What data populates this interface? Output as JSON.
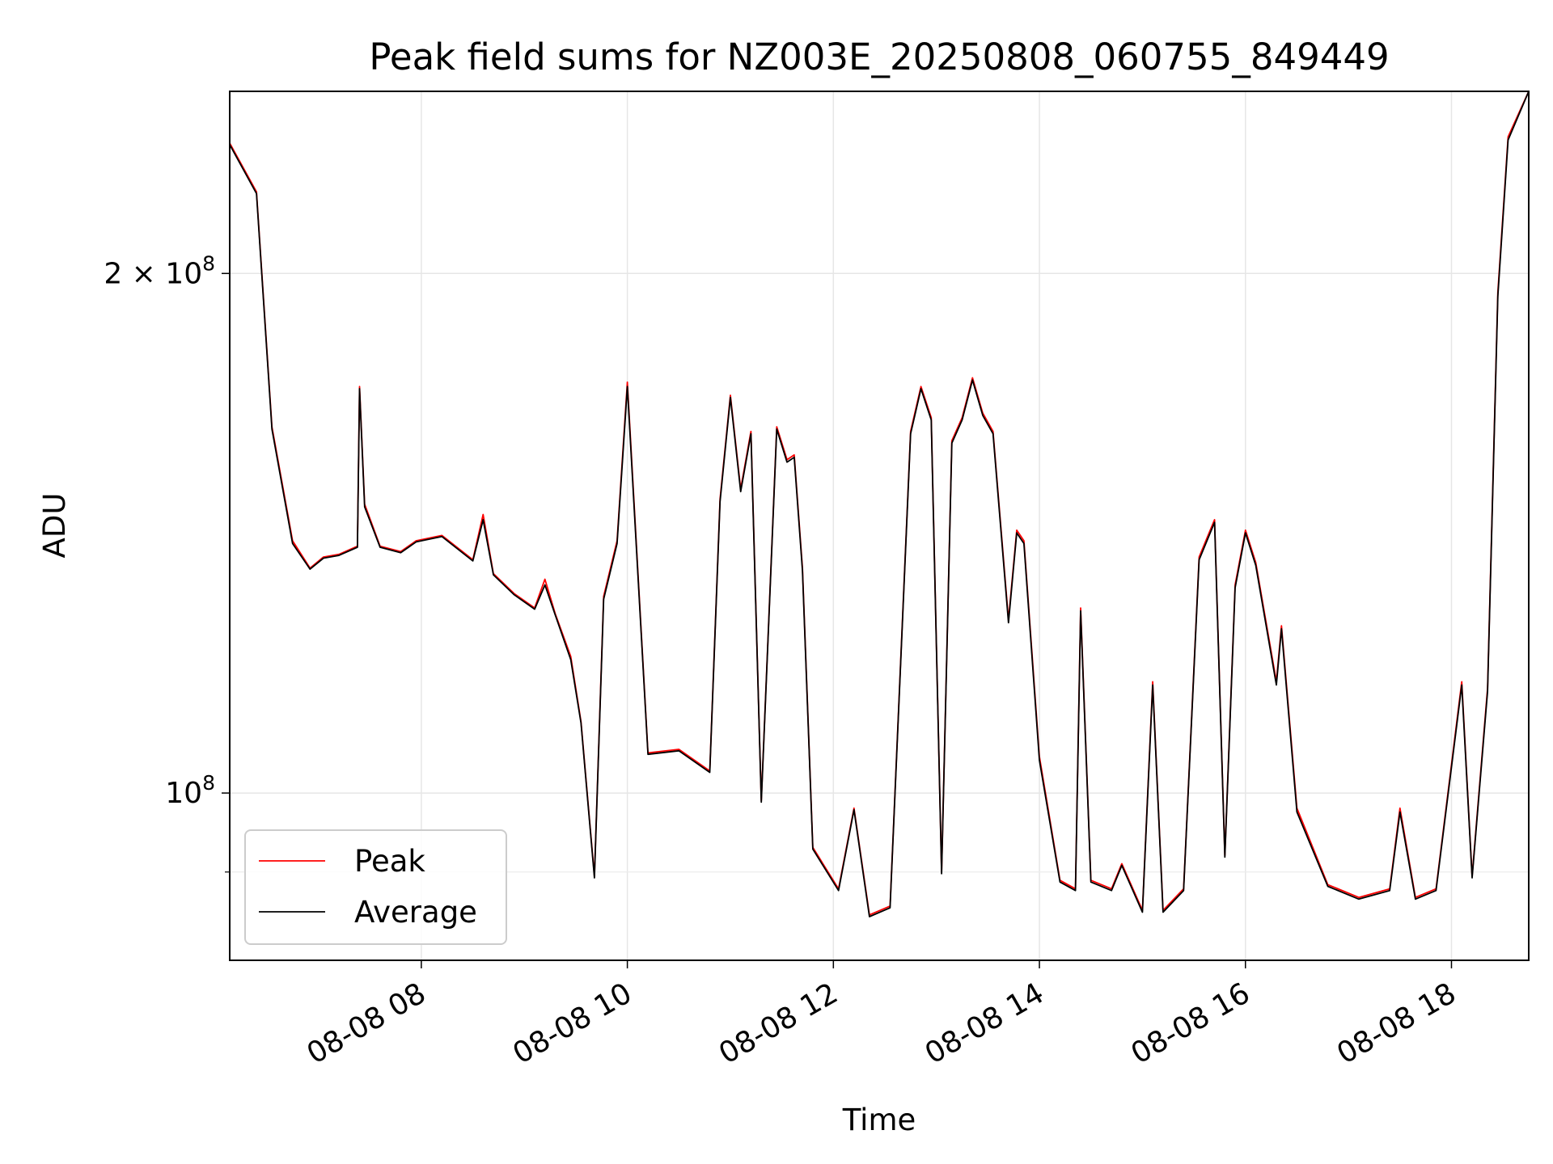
{
  "chart_data": {
    "type": "line",
    "title": "Peak field sums for NZ003E_20250808_060755_849449",
    "xlabel": "Time",
    "ylabel": "ADU",
    "yscale": "log",
    "ylim": [
      80000000,
      255000000
    ],
    "xlim_hours": [
      6.14,
      18.75
    ],
    "grid": true,
    "legend_position": "lower-left",
    "x_ticks": [
      {
        "hour": 8,
        "label": "08-08 08"
      },
      {
        "hour": 10,
        "label": "08-08 10"
      },
      {
        "hour": 12,
        "label": "08-08 12"
      },
      {
        "hour": 14,
        "label": "08-08 14"
      },
      {
        "hour": 16,
        "label": "08-08 16"
      },
      {
        "hour": 18,
        "label": "08-08 18"
      }
    ],
    "y_ticks": [
      {
        "value": 200000000,
        "base": "2 × 10",
        "exp": "8"
      },
      {
        "value": 100000000,
        "base": "10",
        "exp": "8"
      }
    ],
    "y_minor_ticks": [
      90000000
    ],
    "x_hours": [
      6.14,
      6.4,
      6.55,
      6.75,
      6.92,
      7.05,
      7.2,
      7.38,
      7.4,
      7.45,
      7.6,
      7.8,
      7.95,
      8.2,
      8.5,
      8.6,
      8.7,
      8.9,
      9.1,
      9.2,
      9.3,
      9.45,
      9.55,
      9.68,
      9.77,
      9.9,
      10.0,
      10.2,
      10.5,
      10.8,
      10.9,
      11.0,
      11.1,
      11.2,
      11.3,
      11.45,
      11.55,
      11.62,
      11.7,
      11.8,
      12.05,
      12.2,
      12.35,
      12.55,
      12.75,
      12.85,
      12.95,
      13.05,
      13.15,
      13.25,
      13.35,
      13.45,
      13.55,
      13.7,
      13.78,
      13.85,
      14.0,
      14.2,
      14.35,
      14.4,
      14.5,
      14.7,
      14.8,
      15.0,
      15.1,
      15.2,
      15.4,
      15.55,
      15.7,
      15.8,
      15.9,
      16.0,
      16.1,
      16.3,
      16.35,
      16.5,
      16.8,
      17.1,
      17.4,
      17.5,
      17.65,
      17.85,
      18.1,
      18.2,
      18.35,
      18.45,
      18.55,
      18.75
    ],
    "series": [
      {
        "name": "Peak",
        "color": "#ff0000",
        "values": [
          238000000,
          223000000,
          163000000,
          140000000,
          135000000,
          137000000,
          137500000,
          139000000,
          172000000,
          147000000,
          139000000,
          138000000,
          140000000,
          141000000,
          136500000,
          145000000,
          134000000,
          130500000,
          128000000,
          133000000,
          127000000,
          120000000,
          110000000,
          89500000,
          130000000,
          140000000,
          173000000,
          105500000,
          106000000,
          103000000,
          148000000,
          170000000,
          150000000,
          162000000,
          99000000,
          163000000,
          156000000,
          157000000,
          135000000,
          93000000,
          88000000,
          98000000,
          85000000,
          86000000,
          162000000,
          172000000,
          165000000,
          90000000,
          160000000,
          165000000,
          174000000,
          166000000,
          162000000,
          126000000,
          142000000,
          140000000,
          105000000,
          89000000,
          88000000,
          128000000,
          89000000,
          88000000,
          91000000,
          85500000,
          116000000,
          85500000,
          88000000,
          137000000,
          144000000,
          92000000,
          132000000,
          142000000,
          136000000,
          116000000,
          125000000,
          98000000,
          88500000,
          87000000,
          88000000,
          98000000,
          87000000,
          88000000,
          116000000,
          89500000,
          115000000,
          195000000,
          240000000,
          258000000
        ]
      },
      {
        "name": "Average",
        "color": "#000000",
        "values": [
          237500000,
          222500000,
          162500000,
          139500000,
          134800000,
          136800000,
          137300000,
          138800000,
          171500000,
          146500000,
          138800000,
          137800000,
          139800000,
          140800000,
          136300000,
          144000000,
          133800000,
          130300000,
          127800000,
          132000000,
          126800000,
          119500000,
          109800000,
          89300000,
          129500000,
          139500000,
          172000000,
          105300000,
          105800000,
          102800000,
          147500000,
          169500000,
          149500000,
          161500000,
          98800000,
          162500000,
          155500000,
          156500000,
          134500000,
          92800000,
          87800000,
          97800000,
          84800000,
          85800000,
          161500000,
          171500000,
          164500000,
          89800000,
          159500000,
          164500000,
          173500000,
          165500000,
          161500000,
          125500000,
          141500000,
          139500000,
          104500000,
          88800000,
          87800000,
          127500000,
          88800000,
          87800000,
          90800000,
          85300000,
          115500000,
          85300000,
          87800000,
          136500000,
          143500000,
          91800000,
          131500000,
          141500000,
          135500000,
          115500000,
          124500000,
          97500000,
          88300000,
          86800000,
          87800000,
          97500000,
          86800000,
          87800000,
          115500000,
          89300000,
          114500000,
          194000000,
          239000000,
          257000000
        ]
      }
    ]
  }
}
